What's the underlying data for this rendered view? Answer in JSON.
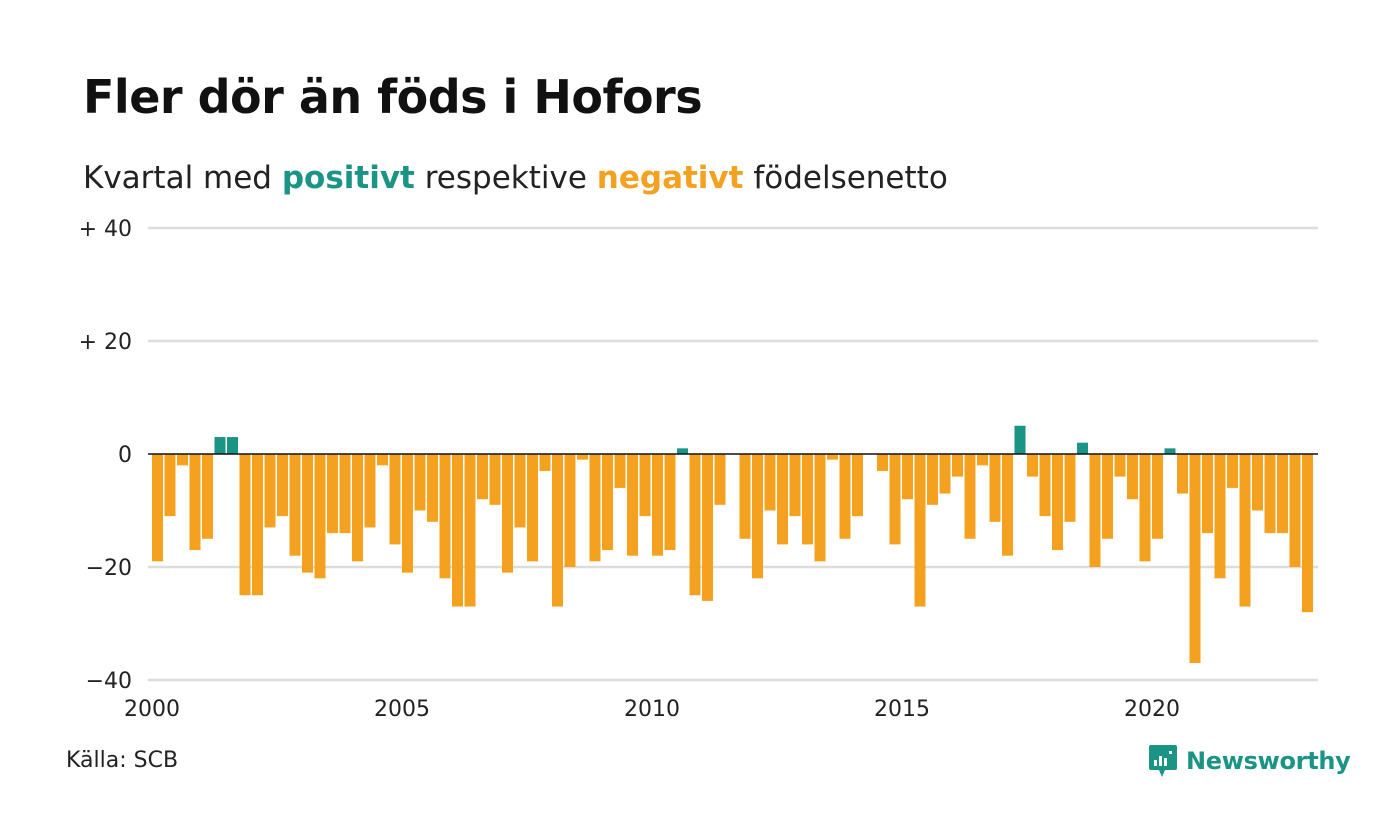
{
  "header": {
    "title": "Fler dör än föds i Hofors",
    "subtitle_pre": "Kvartal med ",
    "subtitle_pos": "positivt",
    "subtitle_mid": " respektive ",
    "subtitle_neg": "negativt",
    "subtitle_post": " födelsenetto"
  },
  "footer": {
    "source": "Källa: SCB",
    "brand": "Newsworthy",
    "brand_icon": "newsworthy-logo-icon"
  },
  "colors": {
    "positive": "#1a9484",
    "negative": "#f4a11f",
    "grid": "#dddddd",
    "zero_line": "#111111"
  },
  "chart_data": {
    "type": "bar",
    "title": "Fler dör än föds i Hofors",
    "subtitle": "Kvartal med positivt respektive negativt födelsenetto",
    "x_start": "2000 Q1",
    "x_ticks": [
      "2000",
      "2005",
      "2010",
      "2015",
      "2020"
    ],
    "y_ticks": [
      {
        "value": 40,
        "label": "+ 40"
      },
      {
        "value": 20,
        "label": "+ 20"
      },
      {
        "value": 0,
        "label": "0"
      },
      {
        "value": -20,
        "label": "−20"
      },
      {
        "value": -40,
        "label": "−40"
      }
    ],
    "ylim": [
      -40,
      40
    ],
    "grid": true,
    "values": [
      -19,
      -11,
      -2,
      -17,
      -15,
      3,
      3,
      -25,
      -25,
      -13,
      -11,
      -18,
      -21,
      -22,
      -14,
      -14,
      -19,
      -13,
      -2,
      -16,
      -21,
      -10,
      -12,
      -22,
      -27,
      -27,
      -8,
      -9,
      -21,
      -13,
      -19,
      -3,
      -27,
      -20,
      -1,
      -19,
      -17,
      -6,
      -18,
      -11,
      -18,
      -17,
      1,
      -25,
      -26,
      -9,
      0,
      -15,
      -22,
      -10,
      -16,
      -11,
      -16,
      -19,
      -1,
      -15,
      -11,
      0,
      -3,
      -16,
      -8,
      -27,
      -9,
      -7,
      -4,
      -15,
      -2,
      -12,
      -18,
      5,
      -4,
      -11,
      -17,
      -12,
      2,
      -20,
      -15,
      -4,
      -8,
      -19,
      -15,
      1,
      -7,
      -37,
      -14,
      -22,
      -6,
      -27,
      -10,
      -14,
      -14,
      -20,
      -28
    ]
  }
}
